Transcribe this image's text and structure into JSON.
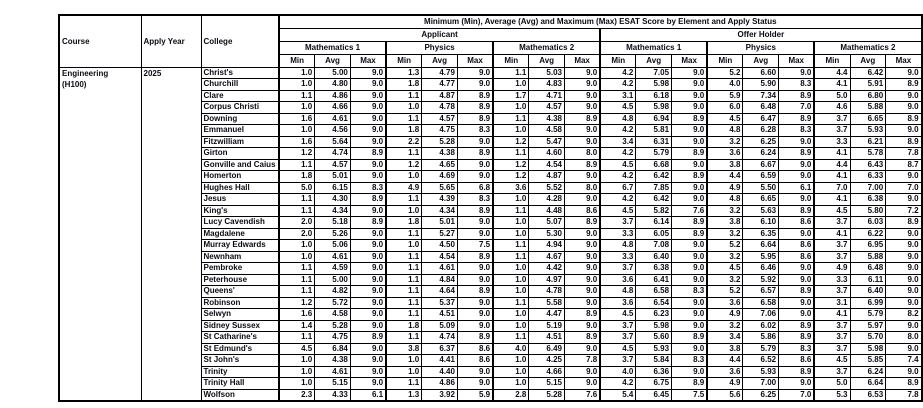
{
  "table": {
    "title": "Minimum (Min), Average (Avg) and Maximum (Max) ESAT Score by Element and Apply Status",
    "left_headers": [
      "Course",
      "Apply Year",
      "College"
    ],
    "status_groups": [
      "Applicant",
      "Offer Holder"
    ],
    "element_groups": [
      "Mathematics 1",
      "Physics",
      "Mathematics 2"
    ],
    "stat_headers": [
      "Min",
      "Avg",
      "Max"
    ],
    "course": "Engineering",
    "course_code": "(H100)",
    "apply_year": "2025",
    "rows": [
      {
        "college": "Christ's",
        "values": [
          "1.0",
          "5.00",
          "9.0",
          "1.3",
          "4.79",
          "9.0",
          "1.1",
          "5.03",
          "9.0",
          "4.2",
          "7.05",
          "9.0",
          "5.2",
          "6.60",
          "9.0",
          "4.4",
          "6.42",
          "9.0"
        ]
      },
      {
        "college": "Churchill",
        "values": [
          "1.0",
          "4.80",
          "9.0",
          "1.8",
          "4.77",
          "9.0",
          "1.0",
          "4.83",
          "9.0",
          "4.2",
          "5.98",
          "9.0",
          "4.0",
          "5.90",
          "8.3",
          "4.1",
          "5.91",
          "8.9"
        ]
      },
      {
        "college": "Clare",
        "values": [
          "1.1",
          "4.86",
          "9.0",
          "1.1",
          "4.87",
          "8.9",
          "1.7",
          "4.71",
          "9.0",
          "3.1",
          "6.18",
          "9.0",
          "5.9",
          "7.34",
          "8.9",
          "5.0",
          "6.80",
          "9.0"
        ]
      },
      {
        "college": "Corpus Christi",
        "values": [
          "1.0",
          "4.66",
          "9.0",
          "1.0",
          "4.78",
          "8.9",
          "1.0",
          "4.57",
          "9.0",
          "4.5",
          "5.98",
          "9.0",
          "6.0",
          "6.48",
          "7.0",
          "4.6",
          "5.88",
          "9.0"
        ]
      },
      {
        "college": "Downing",
        "values": [
          "1.6",
          "4.61",
          "9.0",
          "1.1",
          "4.57",
          "8.9",
          "1.1",
          "4.38",
          "8.9",
          "4.8",
          "6.94",
          "8.9",
          "4.5",
          "6.47",
          "8.9",
          "3.7",
          "6.65",
          "8.9"
        ]
      },
      {
        "college": "Emmanuel",
        "values": [
          "1.0",
          "4.56",
          "9.0",
          "1.8",
          "4.75",
          "8.3",
          "1.0",
          "4.58",
          "9.0",
          "4.2",
          "5.81",
          "9.0",
          "4.8",
          "6.28",
          "8.3",
          "3.7",
          "5.93",
          "9.0"
        ]
      },
      {
        "college": "Fitzwilliam",
        "values": [
          "1.6",
          "5.64",
          "9.0",
          "2.2",
          "5.28",
          "9.0",
          "1.2",
          "5.47",
          "9.0",
          "3.4",
          "6.31",
          "9.0",
          "3.2",
          "6.25",
          "9.0",
          "3.3",
          "6.21",
          "8.9"
        ]
      },
      {
        "college": "Girton",
        "values": [
          "1.2",
          "4.74",
          "8.9",
          "1.1",
          "4.38",
          "8.9",
          "1.1",
          "4.60",
          "8.0",
          "4.2",
          "5.79",
          "8.9",
          "3.6",
          "6.24",
          "8.9",
          "4.1",
          "5.78",
          "7.8"
        ]
      },
      {
        "college": "Gonville and Caius",
        "values": [
          "1.1",
          "4.57",
          "9.0",
          "1.2",
          "4.65",
          "9.0",
          "1.2",
          "4.54",
          "8.9",
          "4.5",
          "6.68",
          "9.0",
          "3.8",
          "6.67",
          "9.0",
          "4.4",
          "6.43",
          "8.7"
        ]
      },
      {
        "college": "Homerton",
        "values": [
          "1.8",
          "5.01",
          "9.0",
          "1.0",
          "4.69",
          "9.0",
          "1.2",
          "4.87",
          "9.0",
          "4.2",
          "6.42",
          "8.9",
          "4.4",
          "6.59",
          "9.0",
          "4.1",
          "6.33",
          "9.0"
        ]
      },
      {
        "college": "Hughes Hall",
        "values": [
          "5.0",
          "6.15",
          "8.3",
          "4.9",
          "5.65",
          "6.8",
          "3.6",
          "5.52",
          "8.0",
          "6.7",
          "7.85",
          "9.0",
          "4.9",
          "5.50",
          "6.1",
          "7.0",
          "7.00",
          "7.0"
        ]
      },
      {
        "college": "Jesus",
        "values": [
          "1.1",
          "4.30",
          "8.9",
          "1.1",
          "4.39",
          "8.3",
          "1.0",
          "4.28",
          "9.0",
          "4.2",
          "6.42",
          "9.0",
          "4.8",
          "6.65",
          "9.0",
          "4.1",
          "6.38",
          "9.0"
        ]
      },
      {
        "college": "King's",
        "values": [
          "1.1",
          "4.34",
          "9.0",
          "1.0",
          "4.34",
          "8.9",
          "1.1",
          "4.48",
          "8.6",
          "4.5",
          "5.82",
          "7.6",
          "3.2",
          "5.63",
          "8.9",
          "4.5",
          "5.80",
          "7.2"
        ]
      },
      {
        "college": "Lucy Cavendish",
        "values": [
          "2.0",
          "5.18",
          "8.9",
          "1.8",
          "5.01",
          "9.0",
          "1.0",
          "5.07",
          "8.9",
          "3.7",
          "6.14",
          "8.9",
          "3.8",
          "6.10",
          "8.6",
          "3.7",
          "6.03",
          "8.9"
        ]
      },
      {
        "college": "Magdalene",
        "values": [
          "2.0",
          "5.26",
          "9.0",
          "1.1",
          "5.27",
          "9.0",
          "1.0",
          "5.30",
          "9.0",
          "3.3",
          "6.05",
          "8.9",
          "3.2",
          "6.35",
          "9.0",
          "4.1",
          "6.22",
          "9.0"
        ]
      },
      {
        "college": "Murray Edwards",
        "values": [
          "1.0",
          "5.06",
          "9.0",
          "1.0",
          "4.50",
          "7.5",
          "1.1",
          "4.94",
          "9.0",
          "4.8",
          "7.08",
          "9.0",
          "5.2",
          "6.64",
          "8.6",
          "3.7",
          "6.95",
          "9.0"
        ]
      },
      {
        "college": "Newnham",
        "values": [
          "1.0",
          "4.61",
          "9.0",
          "1.1",
          "4.54",
          "8.9",
          "1.1",
          "4.67",
          "9.0",
          "3.3",
          "6.40",
          "9.0",
          "3.2",
          "5.95",
          "8.6",
          "3.7",
          "5.88",
          "9.0"
        ]
      },
      {
        "college": "Pembroke",
        "values": [
          "1.1",
          "4.59",
          "9.0",
          "1.1",
          "4.61",
          "9.0",
          "1.0",
          "4.42",
          "9.0",
          "3.7",
          "6.38",
          "9.0",
          "4.5",
          "6.46",
          "9.0",
          "4.9",
          "6.48",
          "9.0"
        ]
      },
      {
        "college": "Peterhouse",
        "values": [
          "1.1",
          "5.00",
          "9.0",
          "1.1",
          "4.84",
          "9.0",
          "1.0",
          "4.97",
          "9.0",
          "3.6",
          "6.41",
          "9.0",
          "3.2",
          "5.92",
          "9.0",
          "3.3",
          "6.11",
          "9.0"
        ]
      },
      {
        "college": "Queens'",
        "values": [
          "1.1",
          "4.82",
          "9.0",
          "1.1",
          "4.64",
          "8.9",
          "1.0",
          "4.78",
          "9.0",
          "4.8",
          "6.58",
          "8.3",
          "5.2",
          "6.57",
          "8.9",
          "3.7",
          "6.40",
          "9.0"
        ]
      },
      {
        "college": "Robinson",
        "values": [
          "1.2",
          "5.72",
          "9.0",
          "1.1",
          "5.37",
          "9.0",
          "1.1",
          "5.58",
          "9.0",
          "3.6",
          "6.54",
          "9.0",
          "3.6",
          "6.58",
          "9.0",
          "3.1",
          "6.99",
          "9.0"
        ]
      },
      {
        "college": "Selwyn",
        "values": [
          "1.6",
          "4.58",
          "9.0",
          "1.1",
          "4.51",
          "9.0",
          "1.0",
          "4.47",
          "8.9",
          "4.5",
          "6.23",
          "9.0",
          "4.9",
          "7.06",
          "9.0",
          "4.1",
          "5.79",
          "8.2"
        ]
      },
      {
        "college": "Sidney Sussex",
        "values": [
          "1.4",
          "5.28",
          "9.0",
          "1.8",
          "5.09",
          "9.0",
          "1.0",
          "5.19",
          "9.0",
          "3.7",
          "5.98",
          "9.0",
          "3.2",
          "6.02",
          "8.9",
          "3.7",
          "5.97",
          "9.0"
        ]
      },
      {
        "college": "St Catharine's",
        "values": [
          "1.1",
          "4.75",
          "8.9",
          "1.1",
          "4.74",
          "8.9",
          "1.1",
          "4.51",
          "8.9",
          "3.7",
          "5.60",
          "8.9",
          "3.4",
          "5.86",
          "8.9",
          "3.7",
          "5.70",
          "8.0"
        ]
      },
      {
        "college": "St Edmund's",
        "values": [
          "4.5",
          "6.84",
          "9.0",
          "3.8",
          "6.37",
          "8.6",
          "4.0",
          "6.49",
          "9.0",
          "4.5",
          "5.93",
          "9.0",
          "3.8",
          "5.79",
          "8.3",
          "3.7",
          "5.98",
          "9.0"
        ]
      },
      {
        "college": "St John's",
        "values": [
          "1.0",
          "4.38",
          "9.0",
          "1.0",
          "4.41",
          "8.6",
          "1.0",
          "4.25",
          "7.8",
          "3.7",
          "5.84",
          "8.3",
          "4.4",
          "6.52",
          "8.6",
          "4.5",
          "5.85",
          "7.4"
        ]
      },
      {
        "college": "Trinity",
        "values": [
          "1.0",
          "4.61",
          "9.0",
          "1.0",
          "4.40",
          "9.0",
          "1.0",
          "4.66",
          "9.0",
          "4.0",
          "6.36",
          "9.0",
          "3.6",
          "5.93",
          "8.9",
          "3.7",
          "6.24",
          "9.0"
        ]
      },
      {
        "college": "Trinity Hall",
        "values": [
          "1.0",
          "5.15",
          "9.0",
          "1.1",
          "4.86",
          "9.0",
          "1.0",
          "5.15",
          "9.0",
          "4.2",
          "6.75",
          "8.9",
          "4.9",
          "7.00",
          "9.0",
          "5.0",
          "6.64",
          "8.9"
        ]
      },
      {
        "college": "Wolfson",
        "values": [
          "2.3",
          "4.33",
          "6.1",
          "1.3",
          "3.92",
          "5.9",
          "2.8",
          "5.28",
          "7.6",
          "5.4",
          "6.45",
          "7.5",
          "5.6",
          "6.25",
          "7.0",
          "5.3",
          "6.53",
          "7.8"
        ]
      }
    ]
  }
}
